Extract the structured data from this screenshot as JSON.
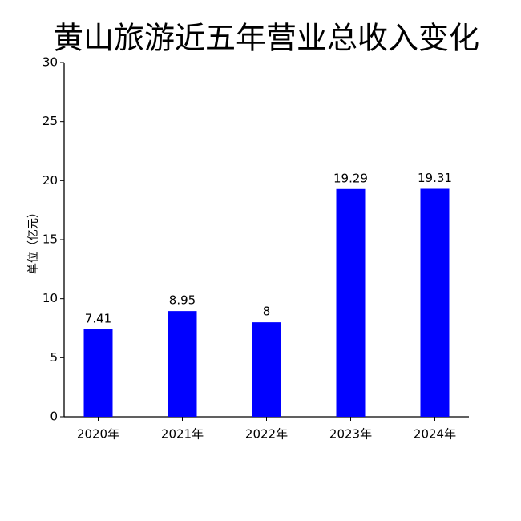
{
  "chart_data": {
    "type": "bar",
    "title": "黄山旅游近五年营业总收入变化",
    "y_label": "单位（亿元）",
    "categories": [
      "2020年",
      "2021年",
      "2022年",
      "2023年",
      "2024年"
    ],
    "values": [
      7.41,
      8.95,
      8,
      19.29,
      19.31
    ],
    "color": "#0000ff",
    "ylim": [
      0,
      30
    ],
    "yticks": [
      0,
      5,
      10,
      15,
      20,
      25,
      30
    ],
    "grid": false
  }
}
